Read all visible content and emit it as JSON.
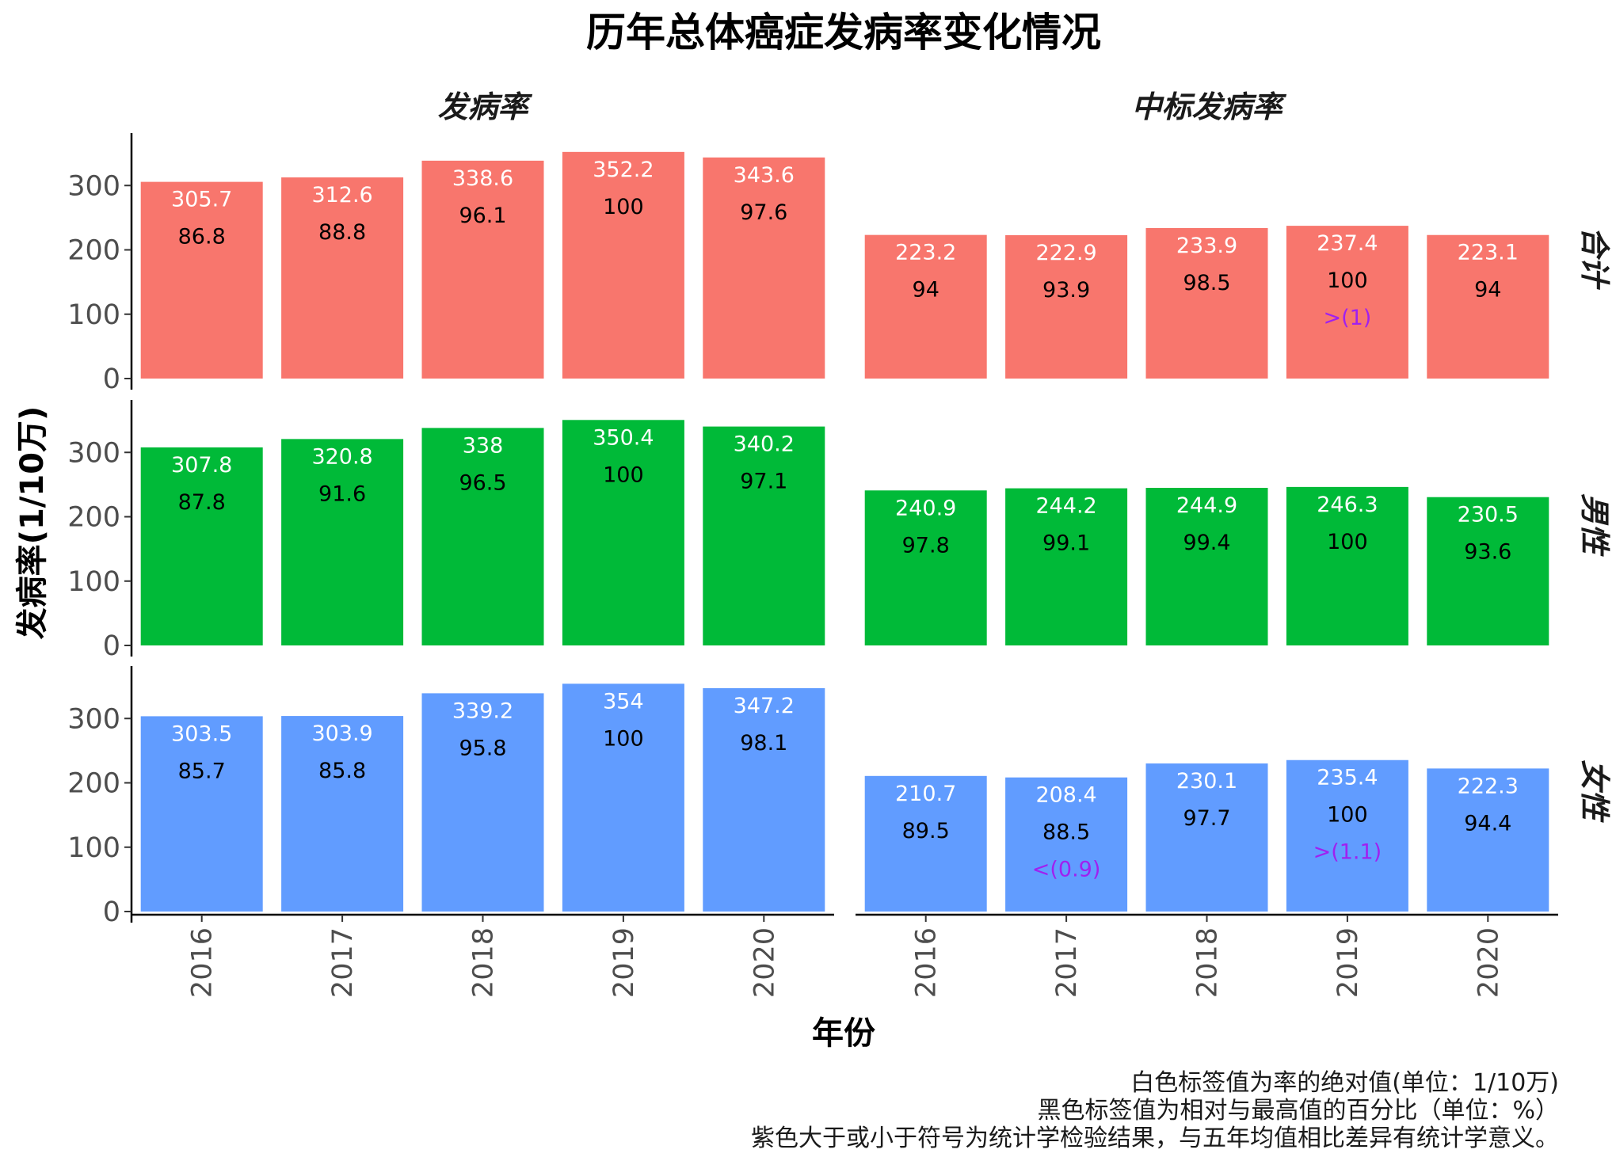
{
  "chart_data": {
    "type": "bar",
    "title": "历年总体癌症发病率变化情况",
    "xlabel": "年份",
    "ylabel": "发病率(1/10万)",
    "ylim": [
      0,
      370
    ],
    "y_ticks": [
      0,
      100,
      200,
      300
    ],
    "categories": [
      "2016",
      "2017",
      "2018",
      "2019",
      "2020"
    ],
    "columns": [
      "发病率",
      "中标发病率"
    ],
    "rows": [
      "合计",
      "男性",
      "女性"
    ],
    "colors": {
      "合计": "#F8766D",
      "男性": "#00BA38",
      "女性": "#619CFF"
    },
    "panels": [
      {
        "column": "发病率",
        "row": "合计",
        "values": [
          305.7,
          312.6,
          338.6,
          352.2,
          343.6
        ],
        "percent": [
          86.8,
          88.8,
          96.1,
          100,
          97.6
        ],
        "sig": [
          "",
          "",
          "",
          "",
          ""
        ]
      },
      {
        "column": "中标发病率",
        "row": "合计",
        "values": [
          223.2,
          222.9,
          233.9,
          237.4,
          223.1
        ],
        "percent": [
          94,
          93.9,
          98.5,
          100,
          94
        ],
        "sig": [
          "",
          "",
          "",
          ">(1)",
          ""
        ]
      },
      {
        "column": "发病率",
        "row": "男性",
        "values": [
          307.8,
          320.8,
          338,
          350.4,
          340.2
        ],
        "percent": [
          87.8,
          91.6,
          96.5,
          100,
          97.1
        ],
        "sig": [
          "",
          "",
          "",
          "",
          ""
        ]
      },
      {
        "column": "中标发病率",
        "row": "男性",
        "values": [
          240.9,
          244.2,
          244.9,
          246.3,
          230.5
        ],
        "percent": [
          97.8,
          99.1,
          99.4,
          100,
          93.6
        ],
        "sig": [
          "",
          "",
          "",
          "",
          ""
        ]
      },
      {
        "column": "发病率",
        "row": "女性",
        "values": [
          303.5,
          303.9,
          339.2,
          354,
          347.2
        ],
        "percent": [
          85.7,
          85.8,
          95.8,
          100,
          98.1
        ],
        "sig": [
          "",
          "",
          "",
          "",
          ""
        ]
      },
      {
        "column": "中标发病率",
        "row": "女性",
        "values": [
          210.7,
          208.4,
          230.1,
          235.4,
          222.3
        ],
        "percent": [
          89.5,
          88.5,
          97.7,
          100,
          94.4
        ],
        "sig": [
          "",
          "<(0.9)",
          "",
          ">(1.1)",
          ""
        ]
      }
    ]
  },
  "notes": [
    "白色标签值为率的绝对值(单位：1/10万)",
    "黑色标签值为相对与最高值的百分比（单位：%）",
    "紫色大于或小于符号为统计学检验结果，与五年均值相比差异有统计学意义。"
  ]
}
